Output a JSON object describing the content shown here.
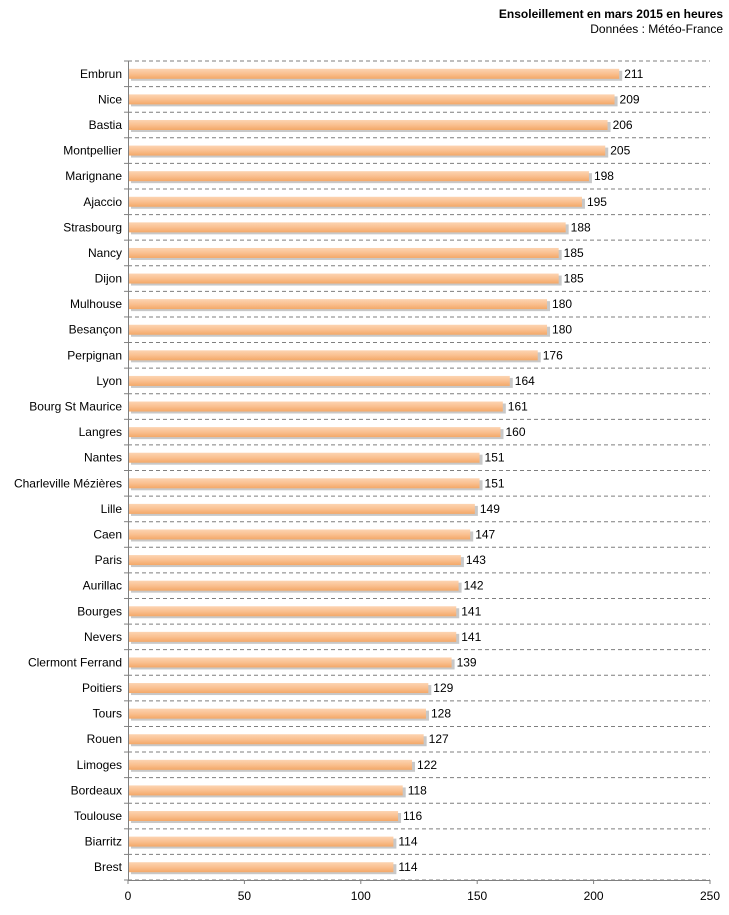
{
  "chart_data": {
    "type": "bar",
    "orientation": "horizontal",
    "title": "Ensoleillement en mars 2015 en heures",
    "subtitle": "Données : Météo-France",
    "xlabel": "",
    "ylabel": "",
    "xlim": [
      0,
      250
    ],
    "xticks": [
      "0",
      "50",
      "100",
      "150",
      "200",
      "250"
    ],
    "grid": "horizontal dashed",
    "bar_color": "#FAC090",
    "categories": [
      "Embrun",
      "Nice",
      "Bastia",
      "Montpellier",
      "Marignane",
      "Ajaccio",
      "Strasbourg",
      "Nancy",
      "Dijon",
      "Mulhouse",
      "Besançon",
      "Perpignan",
      "Lyon",
      "Bourg St Maurice",
      "Langres",
      "Nantes",
      "Charleville Mézières",
      "Lille",
      "Caen",
      "Paris",
      "Aurillac",
      "Bourges",
      "Nevers",
      "Clermont Ferrand",
      "Poitiers",
      "Tours",
      "Rouen",
      "Limoges",
      "Bordeaux",
      "Toulouse",
      "Biarritz",
      "Brest"
    ],
    "values": [
      211,
      209,
      206,
      205,
      198,
      195,
      188,
      185,
      185,
      180,
      180,
      176,
      164,
      161,
      160,
      151,
      151,
      149,
      147,
      143,
      142,
      141,
      141,
      139,
      129,
      128,
      127,
      122,
      118,
      116,
      114,
      114
    ],
    "value_labels": [
      "211",
      "209",
      "206",
      "205",
      "198",
      "195",
      "188",
      "185",
      "185",
      "180",
      "180",
      "176",
      "164",
      "161",
      "160",
      "151",
      "151",
      "149",
      "147",
      "143",
      "142",
      "141",
      "141",
      "139",
      "129",
      "128",
      "127",
      "122",
      "118",
      "116",
      "114",
      "114"
    ]
  }
}
